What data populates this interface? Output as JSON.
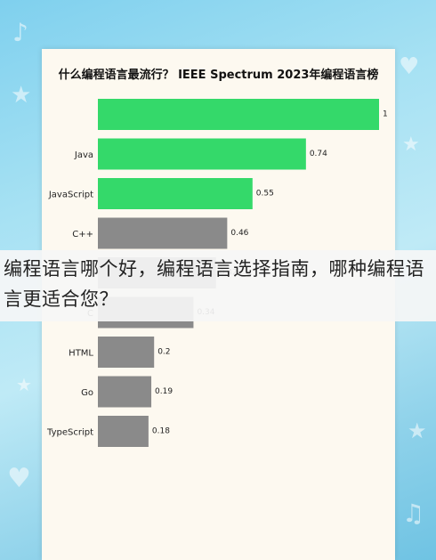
{
  "headline": "编程语言哪个好，编程语言选择指南，哪种编程语言更适合您？",
  "colors": {
    "green": "#34d96a",
    "gray": "#8a8a8a"
  },
  "chart_data": {
    "type": "bar",
    "orientation": "horizontal",
    "title": "什么编程语言最流行？ IEEE Spectrum 2023年编程语言榜",
    "categories": [
      "",
      "Java",
      "JavaScript",
      "C++",
      "",
      "C",
      "HTML",
      "Go",
      "TypeScript"
    ],
    "values": [
      1,
      0.74,
      0.55,
      0.46,
      0.42,
      0.34,
      0.2,
      0.19,
      0.18
    ],
    "value_labels": [
      "1",
      "0.74",
      "0.55",
      "0.46",
      "0.42",
      "0.34",
      "0.2",
      "0.19",
      "0.18"
    ],
    "bar_colors": [
      "#34d96a",
      "#34d96a",
      "#34d96a",
      "#8a8a8a",
      "#8a8a8a",
      "#8a8a8a",
      "#8a8a8a",
      "#8a8a8a",
      "#8a8a8a"
    ],
    "xlim": [
      0,
      1
    ],
    "grid": false,
    "legend": "none"
  }
}
